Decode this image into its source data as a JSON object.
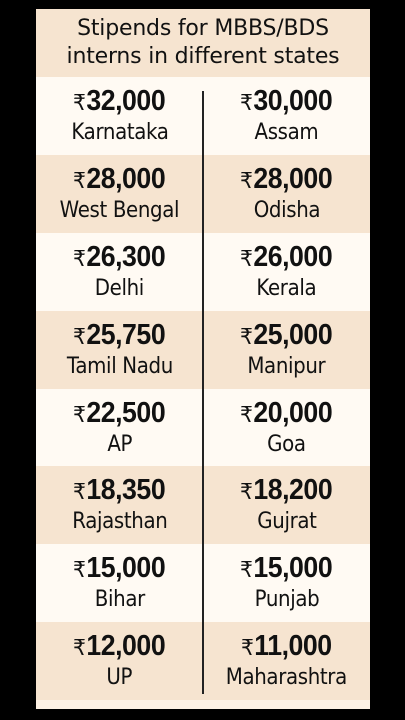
{
  "header": {
    "line1": "Stipends for MBBS/BDS",
    "line2": "interns in different states"
  },
  "currency_symbol": "₹",
  "rows": [
    [
      {
        "amount": "32,000",
        "state": "Karnataka"
      },
      {
        "amount": "30,000",
        "state": "Assam"
      }
    ],
    [
      {
        "amount": "28,000",
        "state": "West Bengal"
      },
      {
        "amount": "28,000",
        "state": "Odisha"
      }
    ],
    [
      {
        "amount": "26,300",
        "state": "Delhi"
      },
      {
        "amount": "26,000",
        "state": "Kerala"
      }
    ],
    [
      {
        "amount": "25,750",
        "state": "Tamil Nadu"
      },
      {
        "amount": "25,000",
        "state": "Manipur"
      }
    ],
    [
      {
        "amount": "22,500",
        "state": "AP"
      },
      {
        "amount": "20,000",
        "state": "Goa"
      }
    ],
    [
      {
        "amount": "18,350",
        "state": "Rajasthan"
      },
      {
        "amount": "18,200",
        "state": "Gujrat"
      }
    ],
    [
      {
        "amount": "15,000",
        "state": "Bihar"
      },
      {
        "amount": "15,000",
        "state": "Punjab"
      }
    ],
    [
      {
        "amount": "12,000",
        "state": "UP"
      },
      {
        "amount": "11,000",
        "state": "Maharashtra"
      }
    ]
  ],
  "colors": {
    "background": "#000000",
    "header_bg": "#f6e4d0",
    "row_shaded": "#f6e4d0",
    "row_light": "#fffaf3",
    "text": "#111111"
  }
}
